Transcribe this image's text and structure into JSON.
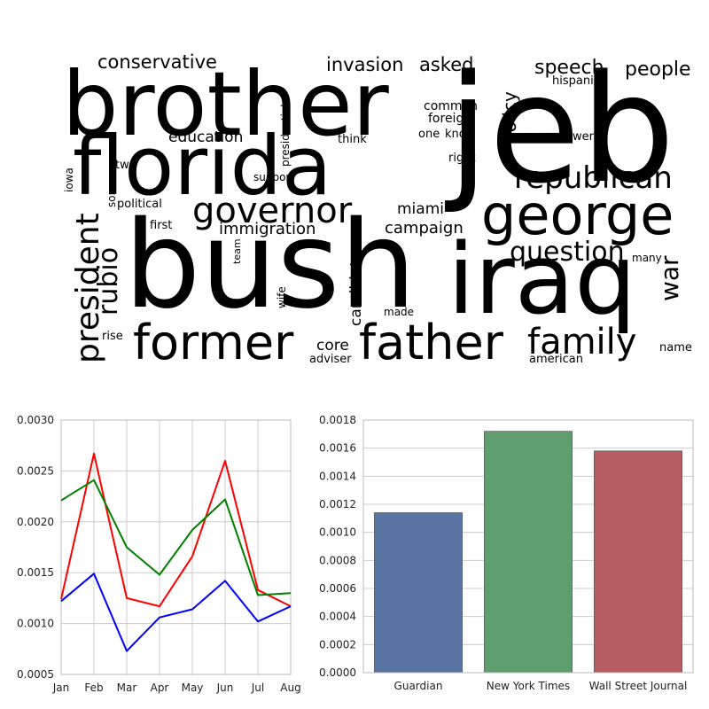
{
  "wordcloud": {
    "words": [
      {
        "text": "brother",
        "color": "#e8361a"
      },
      {
        "text": "jeb",
        "color": "#1f8ae6"
      },
      {
        "text": "florida",
        "color": "#1fd3e6"
      },
      {
        "text": "bush",
        "color": "#1ab8e6"
      },
      {
        "text": "iraq",
        "color": "#1ce67a"
      },
      {
        "text": "george",
        "color": "#1ce684"
      },
      {
        "text": "former",
        "color": "#1a8ee6"
      },
      {
        "text": "father",
        "color": "#1ce63a"
      },
      {
        "text": "family",
        "color": "#2414d6"
      },
      {
        "text": "governor",
        "color": "#1a42e0"
      },
      {
        "text": "republican",
        "color": "#9be61c"
      },
      {
        "text": "president",
        "color": "#e0601c"
      },
      {
        "text": "rubio",
        "color": "#d6a01a"
      },
      {
        "text": "question",
        "color": "#e0721c"
      },
      {
        "text": "war",
        "color": "#9be61c"
      },
      {
        "text": "conservative",
        "color": "#e06a1a"
      },
      {
        "text": "invasion",
        "color": "#d6e61c"
      },
      {
        "text": "asked",
        "color": "#1a8ee6"
      },
      {
        "text": "speech",
        "color": "#1ce65a"
      },
      {
        "text": "people",
        "color": "#e07a1a"
      },
      {
        "text": "policy",
        "color": "#1ac8e6"
      },
      {
        "text": "hispanic",
        "color": "#e6c81c"
      },
      {
        "text": "common",
        "color": "#1a5ae0"
      },
      {
        "text": "foreign",
        "color": "#e09a1a"
      },
      {
        "text": "one",
        "color": "#e0361a"
      },
      {
        "text": "know",
        "color": "#e0b41a"
      },
      {
        "text": "answer",
        "color": "#b4e61c"
      },
      {
        "text": "right",
        "color": "#1ab8e6"
      },
      {
        "text": "education",
        "color": "#1ad2c0"
      },
      {
        "text": "think",
        "color": "#5ae61c"
      },
      {
        "text": "presidential",
        "color": "#9be61c"
      },
      {
        "text": "support",
        "color": "#a0e61c"
      },
      {
        "text": "two",
        "color": "#1a8ee6"
      },
      {
        "text": "iowa",
        "color": "#e06a1a"
      },
      {
        "text": "son",
        "color": "#e0501a"
      },
      {
        "text": "political",
        "color": "#e0361a"
      },
      {
        "text": "first",
        "color": "#e0361a"
      },
      {
        "text": "immigration",
        "color": "#1a3ed6"
      },
      {
        "text": "miami",
        "color": "#1ce684"
      },
      {
        "text": "campaign",
        "color": "#1ce69a"
      },
      {
        "text": "team",
        "color": "#1a8ee6"
      },
      {
        "text": "wife",
        "color": "#1ce6a4"
      },
      {
        "text": "candidate",
        "color": "#1ae6c8"
      },
      {
        "text": "made",
        "color": "#e6e01c"
      },
      {
        "text": "many",
        "color": "#1ac0e6"
      },
      {
        "text": "core",
        "color": "#d6e61c"
      },
      {
        "text": "rise",
        "color": "#6ae61c"
      },
      {
        "text": "adviser",
        "color": "#1a8ee6"
      },
      {
        "text": "american",
        "color": "#1a8ee6"
      },
      {
        "text": "name",
        "color": "#1ad2e6"
      }
    ]
  },
  "chart_data": [
    {
      "type": "line",
      "x": [
        "Jan",
        "Feb",
        "Mar",
        "Apr",
        "May",
        "Jun",
        "Jul",
        "Aug"
      ],
      "series": [
        {
          "color": "#ff0000",
          "values": [
            0.00124,
            0.00267,
            0.00125,
            0.00117,
            0.00166,
            0.0026,
            0.00133,
            0.00117
          ]
        },
        {
          "color": "#008000",
          "values": [
            0.00221,
            0.00241,
            0.00175,
            0.00148,
            0.00192,
            0.00222,
            0.00128,
            0.0013
          ]
        },
        {
          "color": "#0000ff",
          "values": [
            0.00122,
            0.00149,
            0.00073,
            0.00106,
            0.00114,
            0.00142,
            0.00102,
            0.00117
          ]
        }
      ],
      "ylim": [
        0.0005,
        0.003
      ],
      "yticks": [
        "0.0005",
        "0.0010",
        "0.0015",
        "0.0020",
        "0.0025",
        "0.0030"
      ],
      "grid": true
    },
    {
      "type": "bar",
      "categories": [
        "Guardian",
        "New York Times",
        "Wall Street Journal"
      ],
      "values": [
        0.00114,
        0.00172,
        0.00158
      ],
      "colors": [
        "#5875a4",
        "#5f9e6e",
        "#b55d60"
      ],
      "ylim": [
        0,
        0.0018
      ],
      "yticks": [
        "0.0000",
        "0.0002",
        "0.0004",
        "0.0006",
        "0.0008",
        "0.0010",
        "0.0012",
        "0.0014",
        "0.0016",
        "0.0018"
      ],
      "grid": true
    }
  ]
}
